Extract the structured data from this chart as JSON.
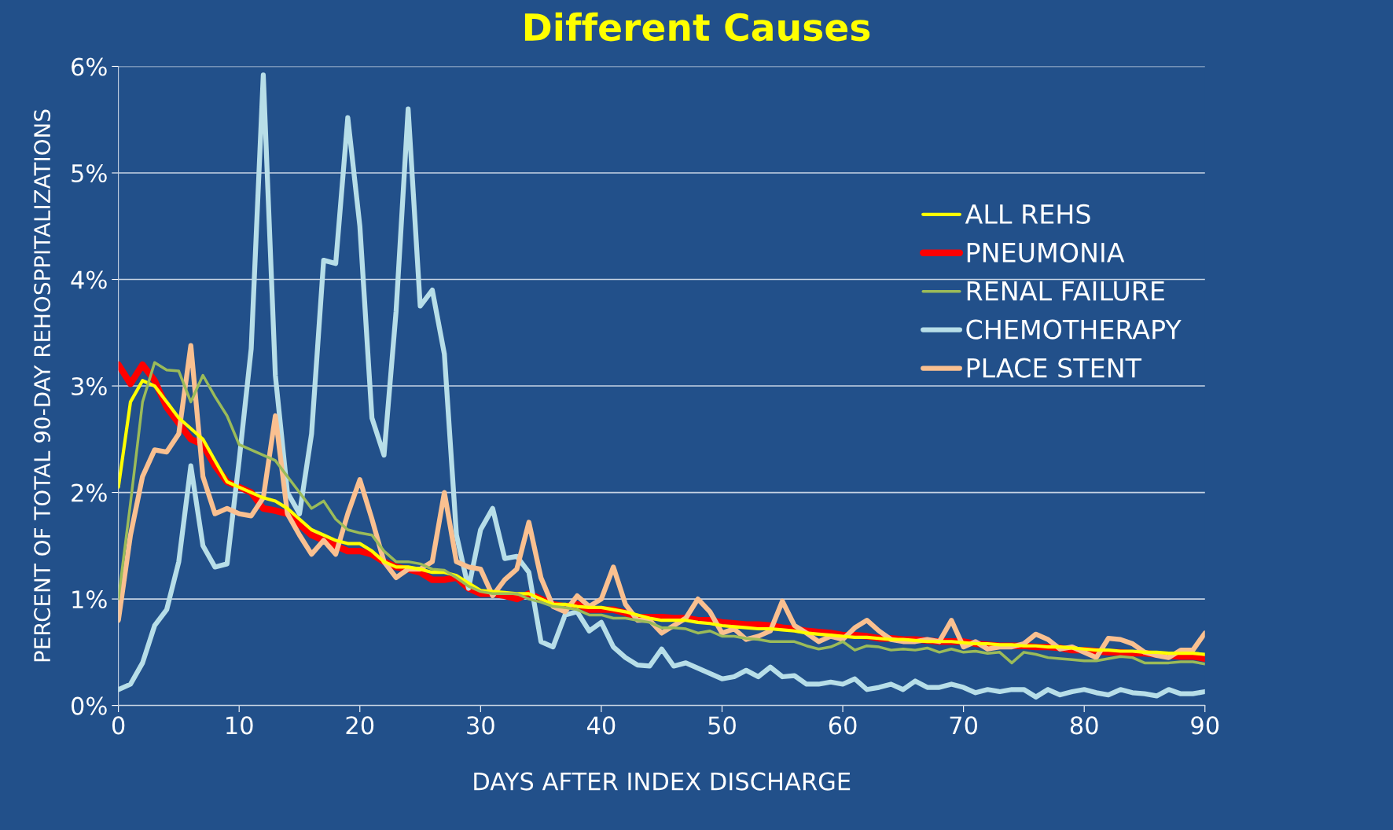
{
  "chart_data": {
    "type": "line",
    "title": "Different Causes",
    "xlabel": "DAYS AFTER INDEX DISCHARGE",
    "ylabel": "PERCENT OF TOTAL 90-DAY REHOSPPITALIZATIONS",
    "x": [
      0,
      1,
      2,
      3,
      4,
      5,
      6,
      7,
      8,
      9,
      10,
      11,
      12,
      13,
      14,
      15,
      16,
      17,
      18,
      19,
      20,
      21,
      22,
      23,
      24,
      25,
      26,
      27,
      28,
      29,
      30,
      31,
      32,
      33,
      34,
      35,
      36,
      37,
      38,
      39,
      40,
      41,
      42,
      43,
      44,
      45,
      46,
      47,
      48,
      49,
      50,
      51,
      52,
      53,
      54,
      55,
      56,
      57,
      58,
      59,
      60,
      61,
      62,
      63,
      64,
      65,
      66,
      67,
      68,
      69,
      70,
      71,
      72,
      73,
      74,
      75,
      76,
      77,
      78,
      79,
      80,
      81,
      82,
      83,
      84,
      85,
      86,
      87,
      88,
      89,
      90
    ],
    "series": [
      {
        "name": "ALL REHS",
        "color": "#ffff00",
        "values": [
          2.05,
          2.85,
          3.05,
          3.0,
          2.85,
          2.7,
          2.6,
          2.5,
          2.3,
          2.1,
          2.05,
          2.0,
          1.95,
          1.92,
          1.85,
          1.75,
          1.65,
          1.6,
          1.55,
          1.52,
          1.52,
          1.45,
          1.35,
          1.3,
          1.3,
          1.28,
          1.25,
          1.25,
          1.22,
          1.15,
          1.08,
          1.07,
          1.06,
          1.05,
          1.05,
          1.0,
          0.95,
          0.95,
          0.93,
          0.92,
          0.92,
          0.9,
          0.88,
          0.85,
          0.82,
          0.8,
          0.8,
          0.8,
          0.78,
          0.77,
          0.75,
          0.74,
          0.73,
          0.72,
          0.72,
          0.71,
          0.7,
          0.68,
          0.67,
          0.66,
          0.65,
          0.64,
          0.64,
          0.63,
          0.62,
          0.62,
          0.61,
          0.6,
          0.6,
          0.6,
          0.59,
          0.58,
          0.58,
          0.57,
          0.57,
          0.56,
          0.56,
          0.55,
          0.55,
          0.54,
          0.53,
          0.52,
          0.52,
          0.51,
          0.51,
          0.5,
          0.5,
          0.49,
          0.49,
          0.49,
          0.48
        ]
      },
      {
        "name": "PNEUMONIA",
        "color": "#ff0000",
        "values": [
          3.2,
          3.02,
          3.2,
          3.05,
          2.8,
          2.65,
          2.5,
          2.45,
          2.25,
          2.1,
          2.05,
          2.0,
          1.85,
          1.83,
          1.8,
          1.7,
          1.6,
          1.55,
          1.5,
          1.45,
          1.45,
          1.42,
          1.35,
          1.3,
          1.28,
          1.25,
          1.18,
          1.18,
          1.2,
          1.1,
          1.05,
          1.05,
          1.03,
          1.0,
          1.05,
          1.0,
          0.95,
          0.93,
          0.95,
          0.9,
          0.9,
          0.9,
          0.87,
          0.83,
          0.83,
          0.83,
          0.82,
          0.82,
          0.8,
          0.8,
          0.78,
          0.77,
          0.76,
          0.76,
          0.75,
          0.73,
          0.72,
          0.7,
          0.69,
          0.68,
          0.66,
          0.66,
          0.65,
          0.63,
          0.63,
          0.62,
          0.62,
          0.61,
          0.6,
          0.6,
          0.6,
          0.58,
          0.57,
          0.56,
          0.56,
          0.56,
          0.55,
          0.55,
          0.54,
          0.52,
          0.52,
          0.51,
          0.5,
          0.5,
          0.49,
          0.49,
          0.48,
          0.47,
          0.46,
          0.46,
          0.44
        ]
      },
      {
        "name": "RENAL FAILURE",
        "color": "#9bbb59",
        "values": [
          1.0,
          1.9,
          2.85,
          3.22,
          3.15,
          3.14,
          2.85,
          3.1,
          2.9,
          2.72,
          2.45,
          2.4,
          2.35,
          2.3,
          2.15,
          2.0,
          1.85,
          1.92,
          1.75,
          1.65,
          1.62,
          1.6,
          1.45,
          1.35,
          1.35,
          1.33,
          1.28,
          1.27,
          1.2,
          1.12,
          1.07,
          1.05,
          1.05,
          1.05,
          1.0,
          0.97,
          0.93,
          0.92,
          0.9,
          0.85,
          0.85,
          0.82,
          0.82,
          0.8,
          0.78,
          0.73,
          0.73,
          0.72,
          0.68,
          0.7,
          0.65,
          0.65,
          0.63,
          0.62,
          0.6,
          0.6,
          0.6,
          0.56,
          0.53,
          0.55,
          0.6,
          0.52,
          0.56,
          0.55,
          0.52,
          0.53,
          0.52,
          0.54,
          0.5,
          0.53,
          0.5,
          0.51,
          0.49,
          0.5,
          0.4,
          0.5,
          0.48,
          0.45,
          0.44,
          0.43,
          0.42,
          0.42,
          0.44,
          0.46,
          0.45,
          0.4,
          0.4,
          0.4,
          0.41,
          0.41,
          0.39
        ]
      },
      {
        "name": "CHEMOTHERAPY",
        "color": "#b7dee8",
        "values": [
          0.15,
          0.2,
          0.4,
          0.75,
          0.9,
          1.35,
          2.25,
          1.5,
          1.3,
          1.33,
          2.3,
          3.35,
          5.92,
          3.1,
          2.0,
          1.8,
          2.55,
          4.18,
          4.15,
          5.52,
          4.5,
          2.7,
          2.35,
          3.7,
          5.6,
          3.75,
          3.9,
          3.3,
          1.6,
          1.1,
          1.65,
          1.85,
          1.38,
          1.4,
          1.25,
          0.6,
          0.55,
          0.85,
          0.88,
          0.7,
          0.78,
          0.55,
          0.45,
          0.38,
          0.37,
          0.53,
          0.37,
          0.4,
          0.35,
          0.3,
          0.25,
          0.27,
          0.33,
          0.27,
          0.36,
          0.27,
          0.28,
          0.2,
          0.2,
          0.22,
          0.2,
          0.25,
          0.15,
          0.17,
          0.2,
          0.15,
          0.23,
          0.17,
          0.17,
          0.2,
          0.17,
          0.12,
          0.15,
          0.13,
          0.15,
          0.15,
          0.08,
          0.15,
          0.1,
          0.13,
          0.15,
          0.12,
          0.1,
          0.15,
          0.12,
          0.11,
          0.09,
          0.15,
          0.11,
          0.11,
          0.13
        ]
      },
      {
        "name": "PLACE STENT",
        "color": "#fac090",
        "values": [
          0.8,
          1.6,
          2.15,
          2.4,
          2.38,
          2.55,
          3.38,
          2.15,
          1.8,
          1.85,
          1.8,
          1.78,
          1.95,
          2.72,
          1.8,
          1.6,
          1.42,
          1.55,
          1.42,
          1.8,
          2.12,
          1.75,
          1.35,
          1.2,
          1.28,
          1.28,
          1.35,
          2.0,
          1.35,
          1.3,
          1.28,
          1.03,
          1.18,
          1.28,
          1.72,
          1.2,
          0.93,
          0.88,
          1.03,
          0.93,
          1.0,
          1.3,
          0.95,
          0.8,
          0.8,
          0.68,
          0.75,
          0.82,
          1.0,
          0.88,
          0.68,
          0.72,
          0.62,
          0.65,
          0.7,
          0.98,
          0.75,
          0.68,
          0.6,
          0.65,
          0.62,
          0.73,
          0.8,
          0.7,
          0.62,
          0.6,
          0.6,
          0.62,
          0.6,
          0.8,
          0.55,
          0.6,
          0.53,
          0.55,
          0.55,
          0.58,
          0.67,
          0.62,
          0.53,
          0.55,
          0.5,
          0.45,
          0.63,
          0.62,
          0.58,
          0.5,
          0.47,
          0.45,
          0.52,
          0.52,
          0.68
        ]
      }
    ],
    "xlim": [
      0,
      90
    ],
    "xticks": [
      0,
      10,
      20,
      30,
      40,
      50,
      60,
      70,
      80,
      90
    ],
    "ylim": [
      0,
      6
    ],
    "yticks": [
      {
        "value": 0,
        "label": "0%"
      },
      {
        "value": 1,
        "label": "1%"
      },
      {
        "value": 2,
        "label": "2%"
      },
      {
        "value": 3,
        "label": "3%"
      },
      {
        "value": 4,
        "label": "4%"
      },
      {
        "value": 5,
        "label": "5%"
      },
      {
        "value": 6,
        "label": "6%"
      }
    ],
    "grid": "y",
    "legend": "right",
    "marker": "none",
    "line_style": "solid"
  }
}
